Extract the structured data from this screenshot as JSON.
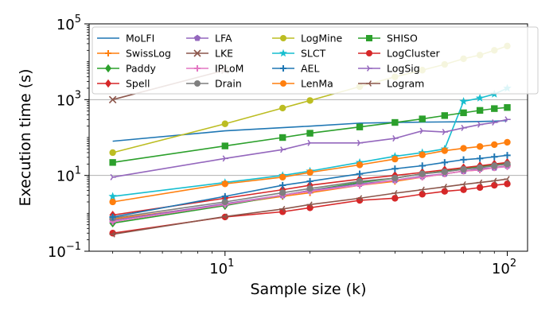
{
  "chart_data": {
    "type": "line",
    "xscale": "log",
    "yscale": "log",
    "xlabel": "Sample size (k)",
    "ylabel": "Execution time (s)",
    "xlim": [
      3.3,
      118
    ],
    "ylim": [
      0.1,
      100000
    ],
    "grid": "y-major",
    "legend_position": "top",
    "x_major_ticks": [
      {
        "value": 10,
        "base": "10",
        "exp": "1"
      },
      {
        "value": 100,
        "base": "10",
        "exp": "2"
      }
    ],
    "y_major_ticks": [
      {
        "value": 0.1,
        "base": "10",
        "exp": "−1"
      },
      {
        "value": 10,
        "base": "10",
        "exp": "1"
      },
      {
        "value": 1000,
        "base": "10",
        "exp": "3"
      },
      {
        "value": 100000,
        "base": "10",
        "exp": "5"
      }
    ],
    "series": [
      {
        "name": "MoLFI",
        "color": "#1f77b4",
        "marker": "none",
        "x": [
          4,
          10,
          20,
          30,
          40,
          50,
          60,
          70,
          80,
          90,
          100
        ],
        "y": [
          80,
          150,
          200,
          240,
          250,
          255,
          258,
          260,
          265,
          270,
          280
        ]
      },
      {
        "name": "SwissLog",
        "color": "#ff7f0e",
        "marker": "plus",
        "x": [
          4,
          10,
          16,
          20,
          30,
          40,
          50,
          60,
          70,
          80,
          90,
          100
        ],
        "y": [
          0.7,
          1.7,
          2.8,
          3.5,
          5.5,
          7,
          9,
          11,
          13,
          14,
          16,
          18
        ]
      },
      {
        "name": "Paddy",
        "color": "#2ca02c",
        "marker": "diamond",
        "x": [
          4,
          10,
          16,
          20,
          30,
          40,
          50,
          60,
          70,
          80,
          90,
          100
        ],
        "y": [
          0.55,
          1.6,
          3,
          4,
          6.5,
          8.5,
          11,
          13,
          15,
          17,
          19,
          21
        ]
      },
      {
        "name": "Spell",
        "color": "#d62728",
        "marker": "diamond",
        "x": [
          4,
          10,
          16,
          20,
          30,
          40,
          50,
          60,
          70,
          80,
          90,
          100
        ],
        "y": [
          0.9,
          2.5,
          4.2,
          5.5,
          8,
          10,
          12,
          14,
          16,
          18,
          20,
          22
        ]
      },
      {
        "name": "LFA",
        "color": "#9467bd",
        "marker": "pentagon",
        "x": [
          4,
          10,
          16,
          20,
          30,
          40,
          50,
          60,
          70,
          80,
          90,
          100
        ],
        "y": [
          0.65,
          1.8,
          3,
          4,
          6,
          7.5,
          9.5,
          11,
          13,
          15,
          16,
          18
        ]
      },
      {
        "name": "LKE",
        "color": "#8c564b",
        "marker": "x",
        "x": [
          4,
          10
        ],
        "y": [
          1000,
          6000
        ]
      },
      {
        "name": "IPLoM",
        "color": "#e377c2",
        "marker": "plus",
        "x": [
          4,
          10,
          16,
          20,
          30,
          40,
          50,
          60,
          70,
          80,
          90,
          100
        ],
        "y": [
          0.6,
          1.7,
          3,
          3.8,
          5.5,
          7.5,
          9,
          11,
          13,
          14,
          16,
          17
        ]
      },
      {
        "name": "Drain",
        "color": "#7f7f7f",
        "marker": "circle",
        "x": [
          4,
          10,
          16,
          20,
          30,
          40,
          50,
          60,
          70,
          80,
          90,
          100
        ],
        "y": [
          0.75,
          2,
          3.5,
          4.5,
          7,
          8.5,
          11,
          12.5,
          14.5,
          16,
          18,
          20
        ]
      },
      {
        "name": "LogMine",
        "color": "#bcbd22",
        "marker": "circle",
        "x": [
          4,
          10,
          16,
          20,
          30,
          40,
          50,
          60,
          70,
          80,
          90,
          100
        ],
        "y": [
          40,
          230,
          600,
          950,
          2200,
          4000,
          6000,
          8500,
          12000,
          15000,
          20000,
          26000
        ]
      },
      {
        "name": "SLCT",
        "color": "#17becf",
        "marker": "star",
        "x": [
          4,
          10,
          16,
          20,
          30,
          40,
          50,
          60,
          70,
          80,
          90,
          100
        ],
        "y": [
          2.8,
          6.5,
          10,
          13,
          22,
          32,
          40,
          50,
          900,
          1100,
          1400,
          2000
        ]
      },
      {
        "name": "AEL",
        "color": "#1f77b4",
        "marker": "plus",
        "x": [
          4,
          10,
          16,
          20,
          30,
          40,
          50,
          60,
          70,
          80,
          90,
          100
        ],
        "y": [
          0.8,
          2.8,
          5.5,
          7,
          11,
          15,
          18,
          22,
          26,
          28,
          31,
          34
        ]
      },
      {
        "name": "LenMa",
        "color": "#ff7f0e",
        "marker": "circle",
        "x": [
          4,
          10,
          16,
          20,
          30,
          40,
          50,
          60,
          70,
          80,
          90,
          100
        ],
        "y": [
          2,
          6,
          9,
          12,
          19,
          27,
          35,
          45,
          52,
          58,
          65,
          75
        ]
      },
      {
        "name": "SHISO",
        "color": "#2ca02c",
        "marker": "square",
        "x": [
          4,
          10,
          16,
          20,
          30,
          40,
          50,
          60,
          70,
          80,
          90,
          100
        ],
        "y": [
          22,
          60,
          100,
          130,
          190,
          250,
          310,
          380,
          450,
          520,
          580,
          620
        ]
      },
      {
        "name": "LogCluster",
        "color": "#d62728",
        "marker": "circle",
        "x": [
          4,
          10,
          16,
          20,
          30,
          40,
          50,
          60,
          70,
          80,
          90,
          100
        ],
        "y": [
          0.3,
          0.8,
          1.1,
          1.4,
          2.2,
          2.5,
          3.2,
          3.8,
          4.2,
          4.8,
          5.5,
          6
        ]
      },
      {
        "name": "LogSig",
        "color": "#9467bd",
        "marker": "tri_right",
        "x": [
          4,
          10,
          16,
          20,
          30,
          40,
          50,
          60,
          70,
          80,
          90,
          100
        ],
        "y": [
          9,
          28,
          48,
          72,
          72,
          95,
          150,
          140,
          180,
          220,
          250,
          300
        ]
      },
      {
        "name": "Logram",
        "color": "#8c564b",
        "marker": "tri_left",
        "x": [
          4,
          10,
          16,
          20,
          30,
          40,
          50,
          60,
          70,
          80,
          90,
          100
        ],
        "y": [
          0.28,
          0.82,
          1.3,
          1.7,
          2.5,
          3.4,
          4.2,
          5,
          5.8,
          6.5,
          7.2,
          8
        ]
      }
    ]
  }
}
